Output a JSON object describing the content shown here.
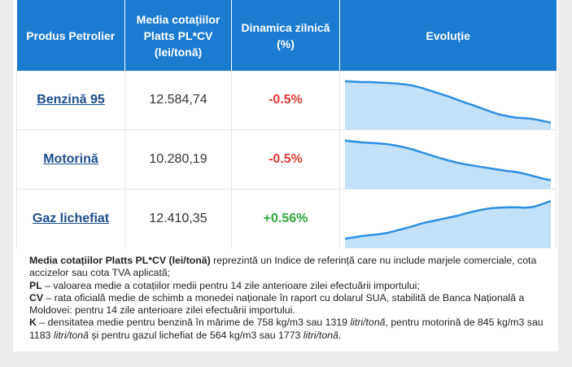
{
  "table": {
    "headers": [
      "Produs Petrolier",
      "Media cotațiilor Platts PL*CV (lei/tonă)",
      "Dinamica zilnică (%)",
      "Evoluție"
    ],
    "rows": [
      {
        "product": "Benzină 95",
        "price": "12.584,74",
        "change": "-0.5%",
        "trend": "down",
        "sparkline": [
          0.95,
          0.94,
          0.93,
          0.93,
          0.92,
          0.91,
          0.9,
          0.88,
          0.85,
          0.8,
          0.74,
          0.68,
          0.62,
          0.55,
          0.48,
          0.42,
          0.35,
          0.28,
          0.22,
          0.18,
          0.15,
          0.14,
          0.12,
          0.08,
          0.04
        ]
      },
      {
        "product": "Motorină",
        "price": "10.280,19",
        "change": "-0.5%",
        "trend": "down",
        "sparkline": [
          0.95,
          0.93,
          0.91,
          0.9,
          0.89,
          0.87,
          0.84,
          0.8,
          0.75,
          0.69,
          0.63,
          0.57,
          0.52,
          0.47,
          0.43,
          0.4,
          0.37,
          0.34,
          0.31,
          0.28,
          0.26,
          0.22,
          0.17,
          0.12,
          0.08
        ]
      },
      {
        "product": "Gaz lichefiat",
        "price": "12.410,35",
        "change": "+0.56%",
        "trend": "up",
        "sparkline": [
          0.1,
          0.13,
          0.16,
          0.18,
          0.2,
          0.23,
          0.28,
          0.33,
          0.38,
          0.44,
          0.48,
          0.52,
          0.56,
          0.6,
          0.65,
          0.7,
          0.74,
          0.77,
          0.78,
          0.79,
          0.79,
          0.78,
          0.8,
          0.86,
          0.93
        ]
      }
    ]
  },
  "notes": {
    "intro_term": "Media cotațiilor Platts PL*CV (lei/tonă)",
    "intro_text": " reprezintă un Indice de referință care nu include marjele comerciale, cota accizelor sau cota TVA aplicată;",
    "pl_term": "PL",
    "pl_text": " – valoarea medie a cotațiilor medii pentru 14 zile anterioare zilei efectuării importului;",
    "cv_term": "CV",
    "cv_text": " – rata oficială medie de schimb a monedei naționale în raport cu dolarul SUA, stabilită de Banca Națională a Moldovei: pentru 14 zile anterioare zilei efectuării importului.",
    "k_term": "K",
    "k_text_1": " – densitatea medie pentru benzină în mărime de 758 kg/m3 sau 1319 ",
    "k_unit_1": "litri/tonă",
    "k_text_2": ", pentru motorină de 845 kg/m3 sau 1183 ",
    "k_unit_2": "litri/tonă",
    "k_text_3": " și pentru gazul lichefiat de 564 kg/m3 sau 1773 ",
    "k_unit_3": "litri/tonă",
    "k_text_4": "."
  },
  "colors": {
    "header_bg": "#1b7bd1",
    "spark_line": "#2e8fe0",
    "spark_fill": "#b9dcf7",
    "negative": "#e53935",
    "positive": "#2eaa3a",
    "link": "#1d4e8f"
  }
}
